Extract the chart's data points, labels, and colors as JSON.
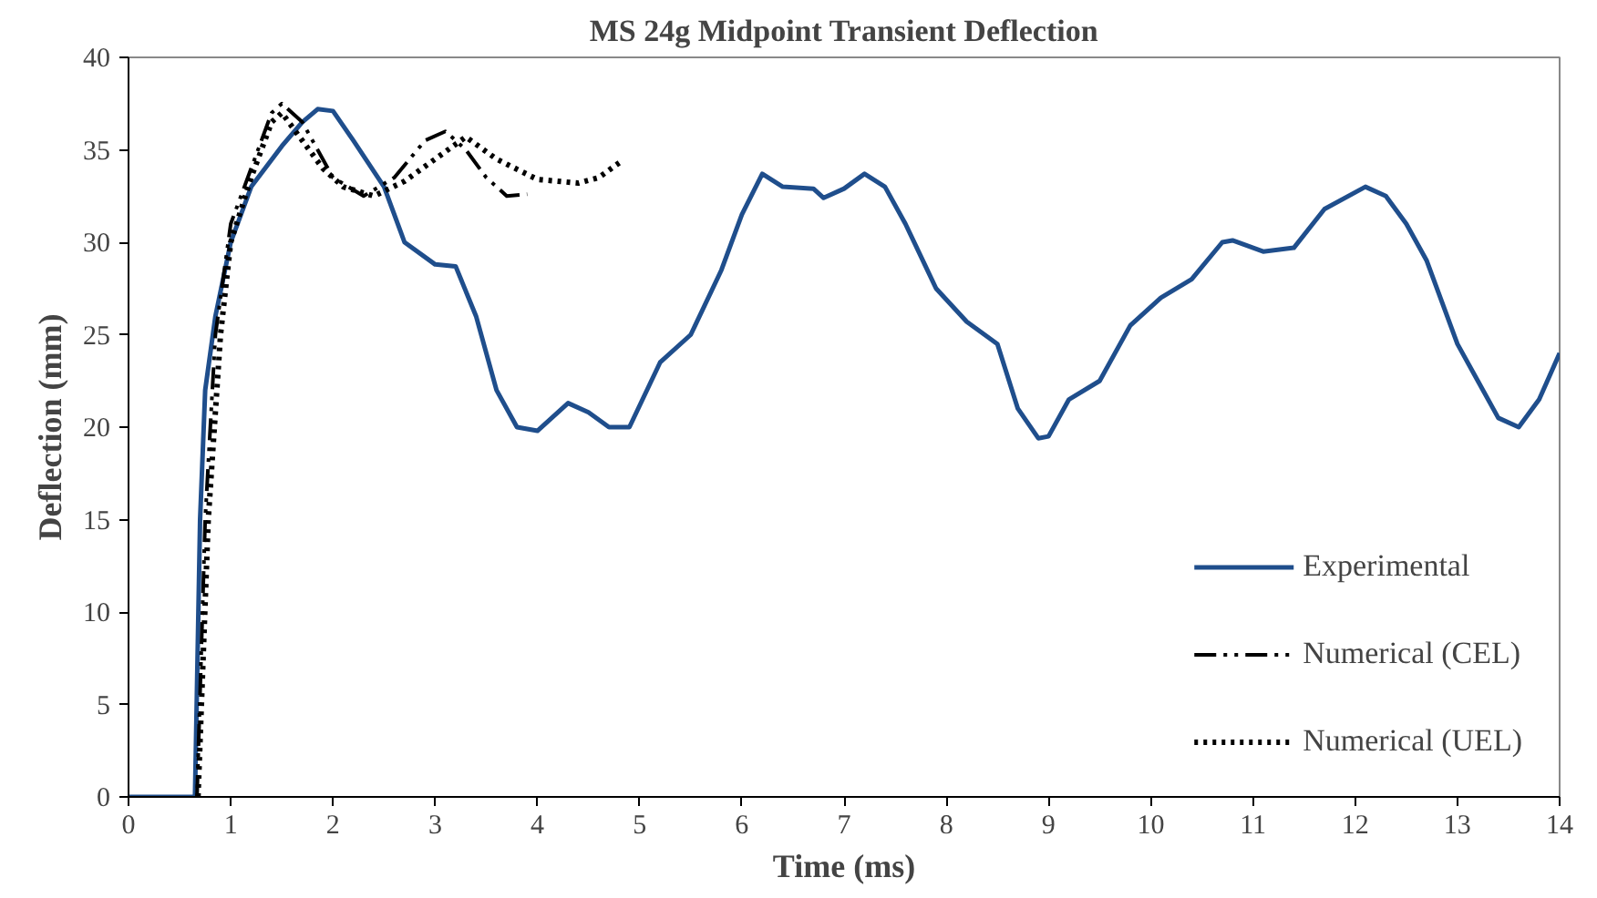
{
  "chart_data": {
    "type": "line",
    "title": "MS 24g Midpoint Transient Deflection",
    "xlabel": "Time (ms)",
    "ylabel": "Deflection (mm)",
    "xlim": [
      0,
      14
    ],
    "ylim": [
      0,
      40
    ],
    "xticks": [
      0,
      1,
      2,
      3,
      4,
      5,
      6,
      7,
      8,
      9,
      10,
      11,
      12,
      13,
      14
    ],
    "yticks": [
      0,
      5,
      10,
      15,
      20,
      25,
      30,
      35,
      40
    ],
    "grid": false,
    "legend": "bottom right",
    "series": [
      {
        "name": "Experimental",
        "color": "#1f4e8c",
        "line_style": "solid",
        "x": [
          0,
          0.65,
          0.7,
          0.75,
          0.85,
          1.0,
          1.2,
          1.5,
          1.7,
          1.85,
          2.0,
          2.2,
          2.5,
          2.7,
          3.0,
          3.2,
          3.4,
          3.6,
          3.8,
          4.0,
          4.3,
          4.5,
          4.7,
          4.9,
          5.2,
          5.5,
          5.8,
          6.0,
          6.2,
          6.4,
          6.7,
          6.8,
          7.0,
          7.2,
          7.4,
          7.6,
          7.9,
          8.2,
          8.5,
          8.7,
          8.9,
          9.0,
          9.2,
          9.5,
          9.8,
          10.1,
          10.4,
          10.7,
          10.8,
          11.1,
          11.4,
          11.7,
          12.1,
          12.3,
          12.5,
          12.7,
          13.0,
          13.2,
          13.4,
          13.6,
          13.8,
          14.0
        ],
        "values": [
          0,
          0,
          15,
          22,
          26,
          30,
          33,
          35.2,
          36.5,
          37.2,
          37.1,
          35.5,
          33,
          30,
          28.8,
          28.7,
          26,
          22,
          20,
          19.8,
          21.3,
          20.8,
          20,
          20,
          23.5,
          25,
          28.5,
          31.5,
          33.7,
          33,
          32.9,
          32.4,
          32.9,
          33.7,
          33,
          31,
          27.5,
          25.7,
          24.5,
          21,
          19.4,
          19.5,
          21.5,
          22.5,
          25.5,
          27,
          28,
          30,
          30.1,
          29.5,
          29.7,
          31.8,
          33,
          32.5,
          31,
          29,
          24.5,
          22.5,
          20.5,
          20,
          21.5,
          24
        ]
      },
      {
        "name": "Numerical (CEL)",
        "color": "#000000",
        "line_style": "dashdot",
        "x": [
          0.67,
          0.75,
          0.85,
          1.0,
          1.2,
          1.4,
          1.5,
          1.7,
          2.0,
          2.3,
          2.6,
          2.9,
          3.1,
          3.3,
          3.5,
          3.7,
          3.9
        ],
        "values": [
          0,
          15,
          25,
          31,
          34,
          37,
          37.5,
          36.5,
          33.5,
          32.5,
          33.5,
          35.5,
          36,
          35,
          33.5,
          32.5,
          32.6
        ]
      },
      {
        "name": "Numerical (UEL)",
        "color": "#000000",
        "line_style": "dotted",
        "x": [
          0.68,
          0.78,
          0.9,
          1.0,
          1.2,
          1.4,
          1.5,
          1.7,
          1.9,
          2.1,
          2.4,
          2.7,
          3.0,
          3.3,
          3.6,
          4.0,
          4.4,
          4.6,
          4.8
        ],
        "values": [
          0,
          15,
          25,
          30,
          33.5,
          36.5,
          37,
          35.5,
          34,
          33,
          32.5,
          33.3,
          34.5,
          35.7,
          34.5,
          33.4,
          33.2,
          33.5,
          34.3
        ]
      }
    ]
  }
}
